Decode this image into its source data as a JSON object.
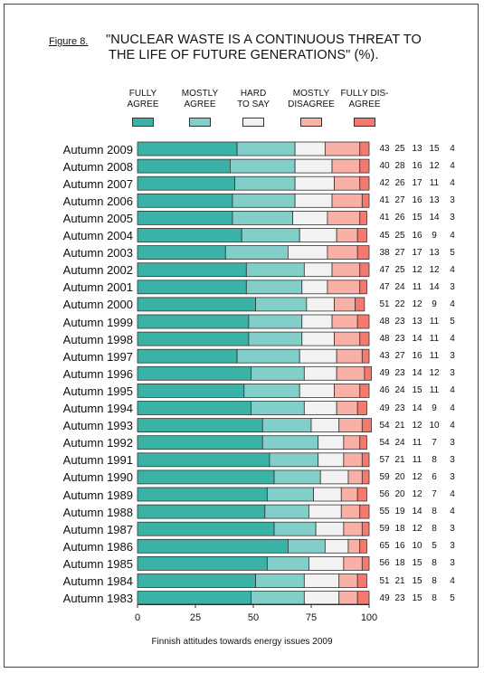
{
  "figure_label": "Figure 8.",
  "title_line1": "\"NUCLEAR WASTE IS A CONTINUOUS THREAT TO",
  "title_line2": "THE LIFE OF FUTURE GENERATIONS\" (%).",
  "footer": "Finnish attitudes towards energy issues 2009",
  "colors": {
    "fully_agree": "#3ab3a6",
    "mostly_agree": "#82cec9",
    "hard_to_say": "#f2f2f2",
    "mostly_disagree": "#f9b0a6",
    "fully_disagree": "#f47a6f"
  },
  "legend": [
    {
      "line1": "FULLY",
      "line2": "AGREE"
    },
    {
      "line1": "MOSTLY",
      "line2": "AGREE"
    },
    {
      "line1": "HARD",
      "line2": "TO SAY"
    },
    {
      "line1": "MOSTLY",
      "line2": "DISAGREE"
    },
    {
      "line1": "FULLY DIS-",
      "line2": "AGREE"
    }
  ],
  "chart_data": {
    "type": "bar",
    "orientation": "horizontal",
    "stacked": true,
    "xlim": [
      0,
      100
    ],
    "xticks": [
      "0",
      "25",
      "50",
      "75",
      "100"
    ],
    "categories": [
      "Autumn 2009",
      "Autumn 2008",
      "Autumn 2007",
      "Autumn 2006",
      "Autumn 2005",
      "Autumn 2004",
      "Autumn 2003",
      "Autumn 2002",
      "Autumn 2001",
      "Autumn 2000",
      "Autumn 1999",
      "Autumn 1998",
      "Autumn 1997",
      "Autumn 1996",
      "Autumn 1995",
      "Autumn 1994",
      "Autumn 1993",
      "Autumn 1992",
      "Autumn 1991",
      "Autumn 1990",
      "Autumn 1989",
      "Autumn 1988",
      "Autumn 1987",
      "Autumn 1986",
      "Autumn 1985",
      "Autumn 1984",
      "Autumn 1983"
    ],
    "series": [
      {
        "name": "FULLY AGREE",
        "values": [
          43,
          40,
          42,
          41,
          41,
          45,
          38,
          47,
          47,
          51,
          48,
          48,
          43,
          49,
          46,
          49,
          54,
          54,
          57,
          59,
          56,
          55,
          59,
          65,
          56,
          51,
          49
        ]
      },
      {
        "name": "MOSTLY AGREE",
        "values": [
          25,
          28,
          26,
          27,
          26,
          25,
          27,
          25,
          24,
          22,
          23,
          23,
          27,
          23,
          24,
          23,
          21,
          24,
          21,
          20,
          20,
          19,
          18,
          16,
          18,
          21,
          23
        ]
      },
      {
        "name": "HARD TO SAY",
        "values": [
          13,
          16,
          17,
          16,
          15,
          16,
          17,
          12,
          11,
          12,
          13,
          14,
          16,
          14,
          15,
          14,
          12,
          11,
          11,
          12,
          12,
          14,
          12,
          10,
          15,
          15,
          15
        ]
      },
      {
        "name": "MOSTLY DISAGREE",
        "values": [
          15,
          12,
          11,
          13,
          14,
          9,
          13,
          12,
          14,
          9,
          11,
          11,
          11,
          12,
          11,
          9,
          10,
          7,
          8,
          6,
          7,
          8,
          8,
          5,
          8,
          8,
          8
        ]
      },
      {
        "name": "FULLY DISAGREE",
        "values": [
          4,
          4,
          4,
          3,
          3,
          4,
          5,
          4,
          3,
          4,
          5,
          4,
          3,
          3,
          4,
          4,
          4,
          3,
          3,
          3,
          4,
          4,
          3,
          3,
          3,
          4,
          5
        ]
      }
    ]
  }
}
